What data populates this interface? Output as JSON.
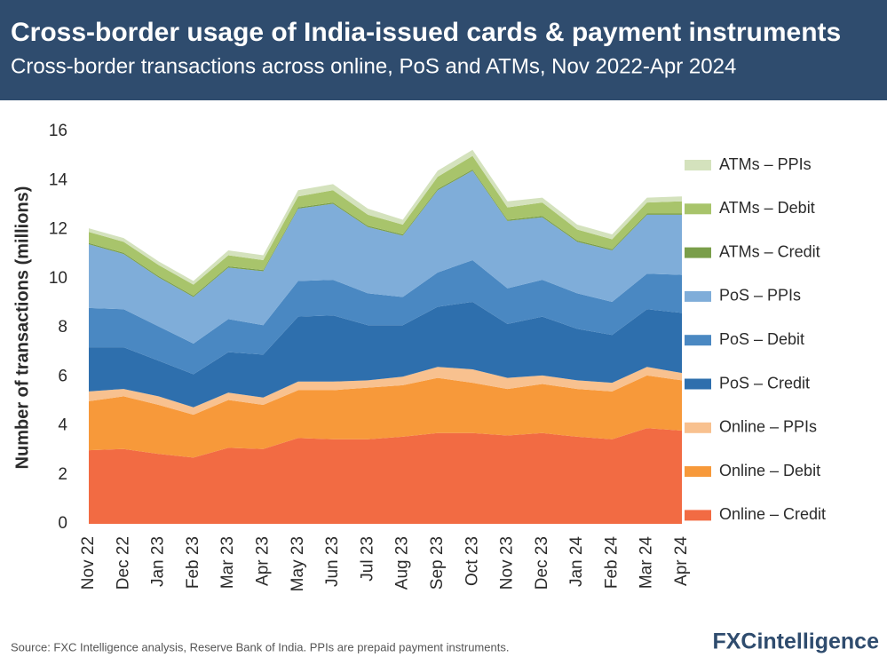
{
  "chart_data": {
    "type": "stacked_area",
    "title": "Cross-border usage of India-issued cards & payment instruments",
    "subtitle": "Cross-border transactions across online, PoS and ATMs, Nov 2022-Apr 2024",
    "y_label": "Number of transactions (millions)",
    "source": "Source: FXC Intelligence analysis, Reserve Bank of India. PPIs are prepaid payment instruments.",
    "logo": "FXCintelligence",
    "categories": [
      "Nov 22",
      "Dec 22",
      "Jan 23",
      "Feb 23",
      "Mar 23",
      "Apr 23",
      "May 23",
      "Jun 23",
      "Jul 23",
      "Aug 23",
      "Sep 23",
      "Oct 23",
      "Nov 23",
      "Dec 23",
      "Jan 24",
      "Feb 24",
      "Mar 24",
      "Apr 24"
    ],
    "ylim": [
      0,
      16
    ],
    "yticks": [
      0,
      2,
      4,
      6,
      8,
      10,
      12,
      14,
      16
    ],
    "grid": false,
    "series": [
      {
        "name": "Online – Credit",
        "color": "#f26b43",
        "values": [
          3.0,
          3.05,
          2.85,
          2.7,
          3.1,
          3.05,
          3.5,
          3.45,
          3.45,
          3.55,
          3.7,
          3.7,
          3.6,
          3.7,
          3.55,
          3.45,
          3.9,
          3.8
        ]
      },
      {
        "name": "Online – Debit",
        "color": "#f7993a",
        "values": [
          2.0,
          2.15,
          2.0,
          1.75,
          1.95,
          1.8,
          1.95,
          2.0,
          2.1,
          2.1,
          2.25,
          2.05,
          1.9,
          2.0,
          1.95,
          1.95,
          2.15,
          2.05
        ]
      },
      {
        "name": "Online – PPIs",
        "color": "#f8c18f",
        "values": [
          0.4,
          0.3,
          0.35,
          0.3,
          0.3,
          0.3,
          0.35,
          0.35,
          0.3,
          0.35,
          0.45,
          0.55,
          0.45,
          0.35,
          0.35,
          0.35,
          0.35,
          0.3
        ]
      },
      {
        "name": "PoS – Credit",
        "color": "#2e6fad",
        "values": [
          1.8,
          1.7,
          1.45,
          1.35,
          1.65,
          1.75,
          2.65,
          2.7,
          2.25,
          2.1,
          2.45,
          2.75,
          2.2,
          2.4,
          2.1,
          1.95,
          2.35,
          2.45
        ]
      },
      {
        "name": "PoS – Debit",
        "color": "#4a88c2",
        "values": [
          1.6,
          1.55,
          1.4,
          1.25,
          1.35,
          1.2,
          1.45,
          1.45,
          1.3,
          1.15,
          1.4,
          1.7,
          1.45,
          1.5,
          1.45,
          1.35,
          1.45,
          1.55
        ]
      },
      {
        "name": "PoS – PPIs",
        "color": "#7fadd9",
        "values": [
          2.6,
          2.25,
          2.0,
          1.9,
          2.1,
          2.2,
          2.95,
          3.1,
          2.7,
          2.5,
          3.35,
          3.65,
          2.75,
          2.55,
          2.1,
          2.1,
          2.4,
          2.45
        ]
      },
      {
        "name": "ATMs – Credit",
        "color": "#7a9e4a",
        "values": [
          0.05,
          0.05,
          0.05,
          0.05,
          0.05,
          0.05,
          0.05,
          0.05,
          0.05,
          0.05,
          0.05,
          0.05,
          0.05,
          0.05,
          0.05,
          0.05,
          0.05,
          0.05
        ]
      },
      {
        "name": "ATMs – Debit",
        "color": "#a8c46b",
        "values": [
          0.45,
          0.45,
          0.45,
          0.45,
          0.45,
          0.4,
          0.45,
          0.5,
          0.45,
          0.4,
          0.5,
          0.55,
          0.5,
          0.55,
          0.45,
          0.4,
          0.45,
          0.5
        ]
      },
      {
        "name": "ATMs – PPIs",
        "color": "#d4e2bd",
        "values": [
          0.15,
          0.15,
          0.15,
          0.15,
          0.2,
          0.2,
          0.25,
          0.25,
          0.25,
          0.2,
          0.25,
          0.25,
          0.25,
          0.2,
          0.2,
          0.2,
          0.2,
          0.2
        ]
      }
    ]
  }
}
